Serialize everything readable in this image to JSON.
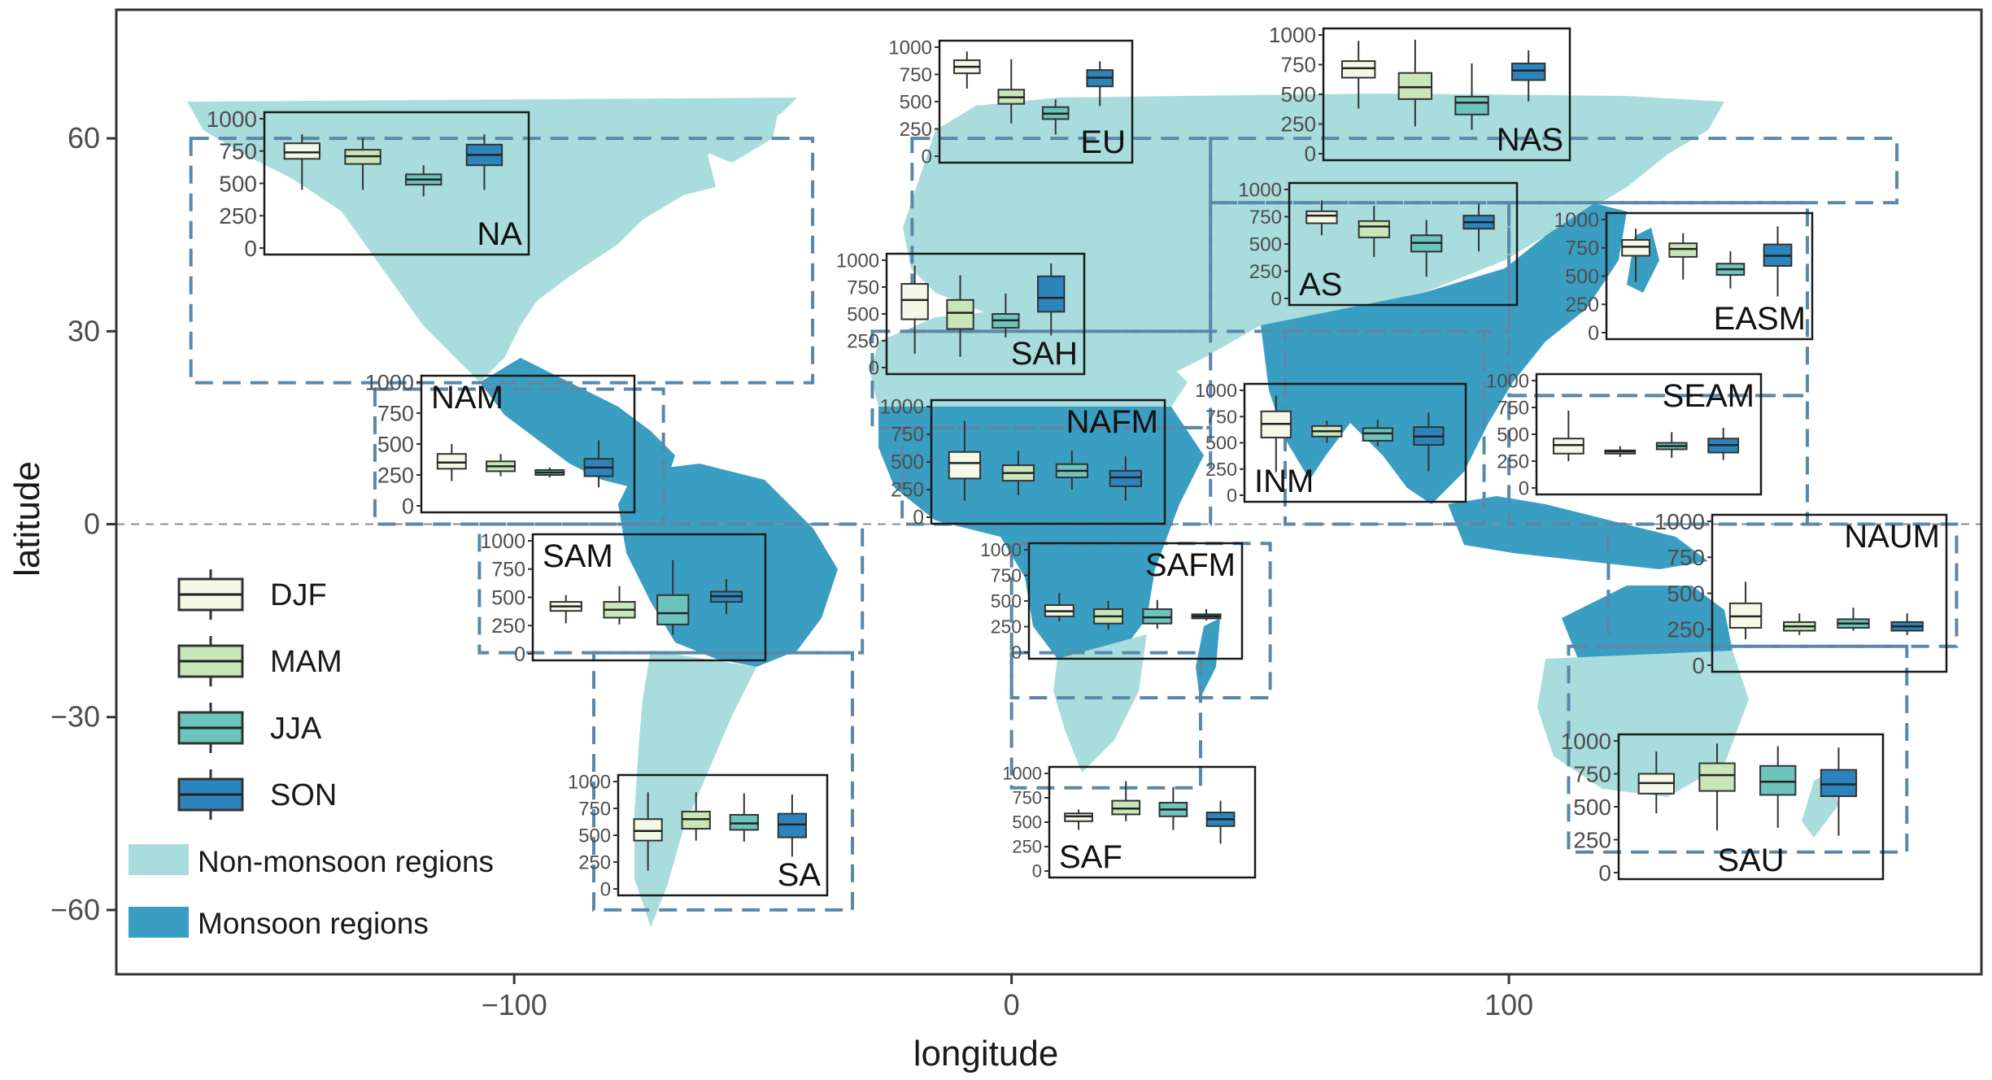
{
  "colors": {
    "DJF": "#f4f8e6",
    "MAM": "#c8e6b8",
    "JJA": "#6cc4bd",
    "SON": "#2c84bd",
    "non_monsoon": "#a9dcdc",
    "monsoon": "#3a9ec2",
    "region_box": "#5a88aa",
    "axis": "#4d4d4d"
  },
  "chart_data": {
    "type": "map",
    "xlabel": "longitude",
    "ylabel": "latitude",
    "xlim": [
      -180,
      195
    ],
    "ylim": [
      -70,
      80
    ],
    "xticks": [
      -100,
      0,
      100
    ],
    "xtick_labels": [
      "−100",
      "0",
      "100"
    ],
    "yticks": [
      60,
      30,
      0,
      -30,
      -60
    ],
    "ytick_labels": [
      "60",
      "30",
      "0",
      "−30",
      "−60"
    ],
    "equator_line": true,
    "legend": {
      "seasons": [
        "DJF",
        "MAM",
        "JJA",
        "SON"
      ],
      "fills": [
        "Non-monsoon regions",
        "Monsoon regions"
      ],
      "position": "bottom-left"
    },
    "inset_type": "boxplot",
    "inset_ylim": [
      0,
      1000
    ],
    "inset_yticks": [
      "0",
      "250",
      "500",
      "750",
      "1000"
    ],
    "regions": [
      {
        "name": "NA",
        "monsoon": false,
        "box": {
          "lon": [
            -165,
            -40
          ],
          "lat": [
            22,
            60
          ]
        },
        "stats": [
          [
            450,
            690,
            740,
            810,
            880
          ],
          [
            450,
            650,
            710,
            760,
            850
          ],
          [
            400,
            490,
            530,
            570,
            640
          ],
          [
            450,
            640,
            720,
            800,
            880
          ]
        ]
      },
      {
        "name": "NAM",
        "monsoon": true,
        "box": {
          "lon": [
            -128,
            -70
          ],
          "lat": [
            0,
            21
          ]
        },
        "stats": [
          [
            200,
            300,
            350,
            420,
            500
          ],
          [
            240,
            280,
            320,
            360,
            420
          ],
          [
            230,
            250,
            270,
            290,
            310
          ],
          [
            150,
            240,
            310,
            380,
            530
          ]
        ]
      },
      {
        "name": "SAM",
        "monsoon": true,
        "box": {
          "lon": [
            -107,
            -30
          ],
          "lat": [
            -20,
            0
          ]
        },
        "stats": [
          [
            270,
            380,
            420,
            460,
            520
          ],
          [
            260,
            320,
            390,
            460,
            600
          ],
          [
            170,
            260,
            360,
            520,
            830
          ],
          [
            350,
            460,
            510,
            550,
            660
          ]
        ]
      },
      {
        "name": "SA",
        "monsoon": false,
        "box": {
          "lon": [
            -84,
            -32
          ],
          "lat": [
            -60,
            -20
          ]
        },
        "stats": [
          [
            170,
            450,
            540,
            650,
            900
          ],
          [
            450,
            560,
            650,
            720,
            900
          ],
          [
            440,
            550,
            610,
            690,
            890
          ],
          [
            300,
            480,
            600,
            700,
            880
          ]
        ]
      },
      {
        "name": "EU",
        "monsoon": false,
        "box": {
          "lon": [
            -20,
            40
          ],
          "lat": [
            30,
            60
          ]
        },
        "stats": [
          [
            620,
            760,
            820,
            880,
            960
          ],
          [
            300,
            480,
            540,
            610,
            890
          ],
          [
            200,
            340,
            390,
            450,
            520
          ],
          [
            460,
            640,
            720,
            790,
            870
          ]
        ]
      },
      {
        "name": "SAH",
        "monsoon": false,
        "box": {
          "lon": [
            -28,
            40
          ],
          "lat": [
            15,
            30
          ]
        },
        "stats": [
          [
            130,
            450,
            630,
            780,
            950
          ],
          [
            100,
            360,
            510,
            630,
            860
          ],
          [
            280,
            370,
            440,
            500,
            690
          ],
          [
            300,
            520,
            650,
            850,
            970
          ]
        ]
      },
      {
        "name": "NAFM",
        "monsoon": true,
        "box": {
          "lon": [
            -22,
            40
          ],
          "lat": [
            0,
            15
          ]
        },
        "stats": [
          [
            150,
            350,
            490,
            590,
            870
          ],
          [
            200,
            330,
            400,
            470,
            600
          ],
          [
            250,
            360,
            420,
            480,
            600
          ],
          [
            150,
            280,
            360,
            420,
            550
          ]
        ]
      },
      {
        "name": "SAFM",
        "monsoon": true,
        "box": {
          "lon": [
            0,
            52
          ],
          "lat": [
            -27,
            -3
          ]
        },
        "stats": [
          [
            300,
            350,
            400,
            460,
            580
          ],
          [
            220,
            280,
            350,
            420,
            500
          ],
          [
            230,
            280,
            340,
            420,
            510
          ],
          [
            310,
            330,
            350,
            370,
            420
          ]
        ]
      },
      {
        "name": "SAF",
        "monsoon": false,
        "box": {
          "lon": [
            0,
            38
          ],
          "lat": [
            -41,
            -20
          ]
        },
        "stats": [
          [
            420,
            510,
            560,
            590,
            630
          ],
          [
            510,
            580,
            640,
            720,
            920
          ],
          [
            420,
            560,
            630,
            700,
            860
          ],
          [
            280,
            460,
            530,
            600,
            720
          ]
        ]
      },
      {
        "name": "NAS",
        "monsoon": false,
        "box": {
          "lon": [
            40,
            178
          ],
          "lat": [
            50,
            60
          ]
        },
        "stats": [
          [
            380,
            640,
            720,
            780,
            950
          ],
          [
            230,
            460,
            560,
            680,
            960
          ],
          [
            200,
            330,
            430,
            480,
            760
          ],
          [
            440,
            620,
            700,
            760,
            870
          ]
        ]
      },
      {
        "name": "AS",
        "monsoon": false,
        "box": {
          "lon": [
            40,
            100
          ],
          "lat": [
            30,
            50
          ]
        },
        "stats": [
          [
            580,
            690,
            760,
            800,
            900
          ],
          [
            380,
            560,
            660,
            710,
            850
          ],
          [
            200,
            430,
            510,
            580,
            720
          ],
          [
            430,
            640,
            700,
            760,
            870
          ]
        ]
      },
      {
        "name": "EASM",
        "monsoon": true,
        "box": {
          "lon": [
            100,
            160
          ],
          "lat": [
            20,
            50
          ]
        },
        "stats": [
          [
            450,
            680,
            760,
            820,
            920
          ],
          [
            470,
            670,
            740,
            790,
            880
          ],
          [
            390,
            510,
            560,
            610,
            720
          ],
          [
            320,
            590,
            680,
            780,
            940
          ]
        ]
      },
      {
        "name": "INM",
        "monsoon": true,
        "box": {
          "lon": [
            55,
            95
          ],
          "lat": [
            0,
            30
          ]
        },
        "stats": [
          [
            220,
            550,
            680,
            800,
            950
          ],
          [
            500,
            560,
            610,
            660,
            710
          ],
          [
            470,
            520,
            590,
            640,
            720
          ],
          [
            230,
            480,
            560,
            650,
            790
          ]
        ]
      },
      {
        "name": "SEAM",
        "monsoon": true,
        "box": {
          "lon": [
            100,
            160
          ],
          "lat": [
            0,
            20
          ]
        },
        "stats": [
          [
            250,
            320,
            400,
            460,
            720
          ],
          [
            290,
            320,
            340,
            350,
            390
          ],
          [
            280,
            360,
            390,
            420,
            520
          ],
          [
            260,
            330,
            400,
            460,
            560
          ]
        ]
      },
      {
        "name": "NAUM",
        "monsoon": true,
        "box": {
          "lon": [
            120,
            190
          ],
          "lat": [
            -19,
            0
          ]
        },
        "stats": [
          [
            180,
            260,
            340,
            430,
            580
          ],
          [
            210,
            240,
            270,
            300,
            360
          ],
          [
            240,
            260,
            290,
            320,
            400
          ],
          [
            210,
            240,
            270,
            300,
            360
          ]
        ]
      },
      {
        "name": "SAU",
        "monsoon": false,
        "box": {
          "lon": [
            112,
            180
          ],
          "lat": [
            -51,
            -19
          ]
        },
        "stats": [
          [
            450,
            600,
            680,
            750,
            920
          ],
          [
            320,
            620,
            740,
            830,
            980
          ],
          [
            340,
            590,
            690,
            810,
            960
          ],
          [
            280,
            580,
            670,
            780,
            950
          ]
        ]
      }
    ]
  }
}
